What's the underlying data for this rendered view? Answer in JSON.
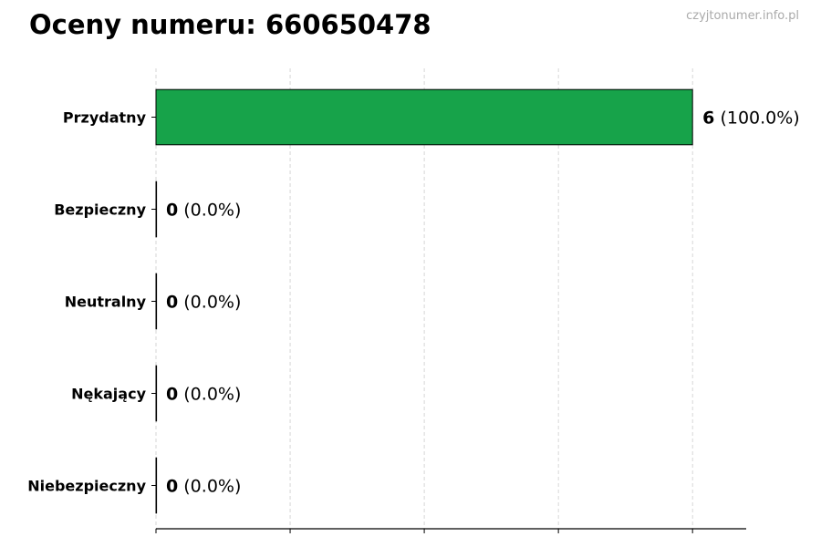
{
  "title": "Oceny numeru: 660650478",
  "watermark": "czyjtonumer.info.pl",
  "chart_data": {
    "type": "bar",
    "orientation": "horizontal",
    "title": "Oceny numeru: 660650478",
    "categories": [
      "Przydatny",
      "Bezpieczny",
      "Neutralny",
      "Nękający",
      "Niebezpieczny"
    ],
    "values": [
      6,
      0,
      0,
      0,
      0
    ],
    "percent_labels": [
      "(100.0%)",
      "(0.0%)",
      "(0.0%)",
      "(0.0%)",
      "(0.0%)"
    ],
    "colors": [
      "#17a34a",
      "#17a34a",
      "#17a34a",
      "#17a34a",
      "#17a34a"
    ],
    "xlim": [
      0,
      6.6
    ],
    "xticks": [
      0,
      1.5,
      3,
      4.5,
      6
    ],
    "xtick_labels_shown": false,
    "grid": "vertical dashed",
    "xlabel": "",
    "ylabel": ""
  }
}
